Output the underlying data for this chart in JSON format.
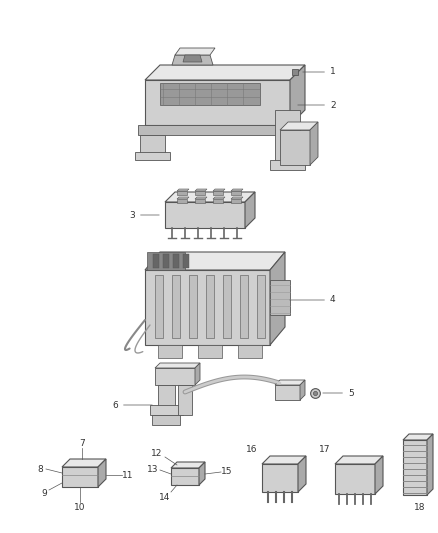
{
  "background_color": "#ffffff",
  "figsize": [
    4.38,
    5.33
  ],
  "dpi": 100,
  "line_color": "#555555",
  "text_color": "#333333",
  "face_light": "#e8e8e8",
  "face_mid": "#d0d0d0",
  "face_dark": "#aaaaaa",
  "font_size": 6.5,
  "parts": {
    "item1_label": "1",
    "item2_label": "2",
    "item3_label": "3",
    "item4_label": "4",
    "item5_label": "5",
    "item6_label": "6",
    "item7_label": "7",
    "item8_label": "8",
    "item9_label": "9",
    "item10_label": "10",
    "item11_label": "11",
    "item12_label": "12",
    "item13_label": "13",
    "item14_label": "14",
    "item15_label": "15",
    "item16_label": "16",
    "item17_label": "17",
    "item18_label": "18"
  }
}
